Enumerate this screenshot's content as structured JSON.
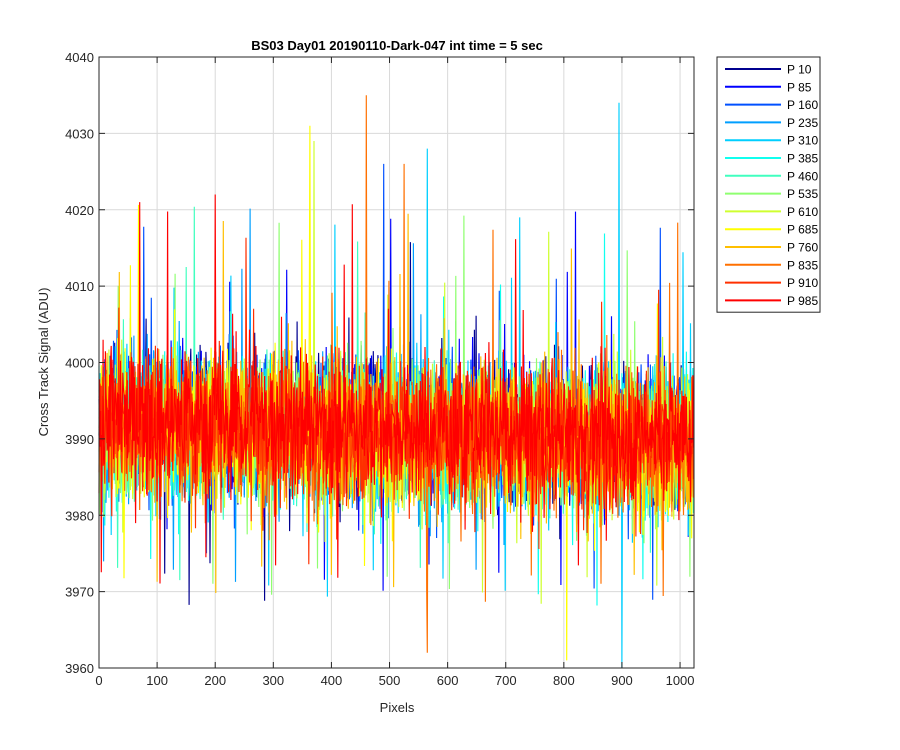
{
  "chart_data": {
    "type": "line",
    "title": "BS03 Day01 20190110-Dark-047 int time = 5 sec",
    "xlabel": "Pixels",
    "ylabel": "Cross Track Signal (ADU)",
    "xlim": [
      0,
      1024
    ],
    "ylim": [
      3960,
      4040
    ],
    "xticks": [
      0,
      100,
      200,
      300,
      400,
      500,
      600,
      700,
      800,
      900,
      1000
    ],
    "yticks": [
      3960,
      3970,
      3980,
      3990,
      4000,
      4010,
      4020,
      4030,
      4040
    ],
    "grid": true,
    "legend_position": "outside-top-right",
    "n_points_per_series": 1024,
    "series": [
      {
        "name": "P 10",
        "color": "#00008f",
        "mean": 3993
      },
      {
        "name": "P 85",
        "color": "#0000ff",
        "mean": 3993
      },
      {
        "name": "P 160",
        "color": "#0050ff",
        "mean": 3993
      },
      {
        "name": "P 235",
        "color": "#009fff",
        "mean": 3992
      },
      {
        "name": "P 310",
        "color": "#00cfff",
        "mean": 3992
      },
      {
        "name": "P 385",
        "color": "#10ffef",
        "mean": 3992
      },
      {
        "name": "P 460",
        "color": "#40ffbf",
        "mean": 3992
      },
      {
        "name": "P 535",
        "color": "#8fff70",
        "mean": 3992
      },
      {
        "name": "P 610",
        "color": "#cfff30",
        "mean": 3992
      },
      {
        "name": "P 685",
        "color": "#ffff00",
        "mean": 3992
      },
      {
        "name": "P 760",
        "color": "#ffbf00",
        "mean": 3992
      },
      {
        "name": "P 835",
        "color": "#ff7000",
        "mean": 3992
      },
      {
        "name": "P 910",
        "color": "#ff3000",
        "mean": 3992
      },
      {
        "name": "P 985",
        "color": "#ff0000",
        "mean": 3993
      }
    ],
    "notable_peaks": [
      {
        "series": "P 835",
        "x": 460,
        "y": 4035
      },
      {
        "series": "P 310",
        "x": 895,
        "y": 4034
      },
      {
        "series": "P 685",
        "x": 363,
        "y": 4031
      },
      {
        "series": "P 610",
        "x": 370,
        "y": 4029
      },
      {
        "series": "P 310",
        "x": 565,
        "y": 4028
      },
      {
        "series": "P 160",
        "x": 490,
        "y": 4026
      },
      {
        "series": "P 835",
        "x": 525,
        "y": 4026
      },
      {
        "series": "P 985",
        "x": 70,
        "y": 4021
      },
      {
        "series": "P 985",
        "x": 200,
        "y": 4022
      },
      {
        "series": "P 835",
        "x": 565,
        "y": 3962
      },
      {
        "series": "P 310",
        "x": 900,
        "y": 3960
      },
      {
        "series": "P 685",
        "x": 805,
        "y": 3961
      }
    ]
  }
}
